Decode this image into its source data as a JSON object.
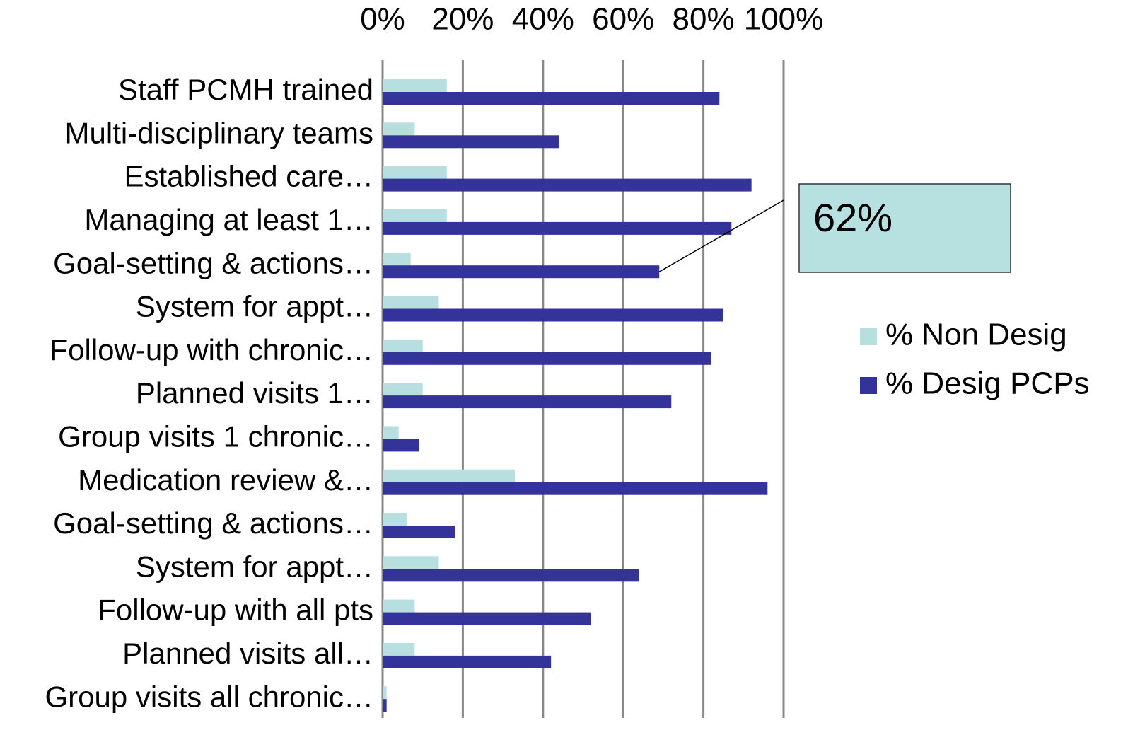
{
  "chart_data": {
    "type": "hbar",
    "categories": [
      "Staff PCMH trained",
      "Multi-disciplinary teams",
      "Established care…",
      "Managing at least 1…",
      "Goal-setting & actions…",
      "System for appt…",
      "Follow-up with chronic…",
      "Planned visits 1…",
      "Group visits 1 chronic…",
      "Medication review &…",
      "Goal-setting & actions…",
      "System for appt…",
      "Follow-up with all  pts",
      "Planned visits all…",
      "Group visits all chronic…"
    ],
    "series": [
      {
        "name": "% Non Desig",
        "color": "#b7dfe0",
        "values": [
          16,
          8,
          16,
          16,
          7,
          14,
          10,
          10,
          4,
          33,
          6,
          14,
          8,
          8,
          1
        ]
      },
      {
        "name": "% Desig PCPs",
        "color": "#333399",
        "values": [
          84,
          44,
          92,
          87,
          69,
          85,
          82,
          72,
          9,
          96,
          18,
          64,
          52,
          42,
          1
        ]
      }
    ],
    "xlim": [
      0,
      100
    ],
    "xticks": [
      {
        "value": 0,
        "label": "0%"
      },
      {
        "value": 20,
        "label": "20%"
      },
      {
        "value": 40,
        "label": "40%"
      },
      {
        "value": 60,
        "label": "60%"
      },
      {
        "value": 80,
        "label": "80%"
      },
      {
        "value": 100,
        "label": "100%"
      }
    ],
    "grid": true,
    "legend": "right",
    "annotation": "62%"
  }
}
